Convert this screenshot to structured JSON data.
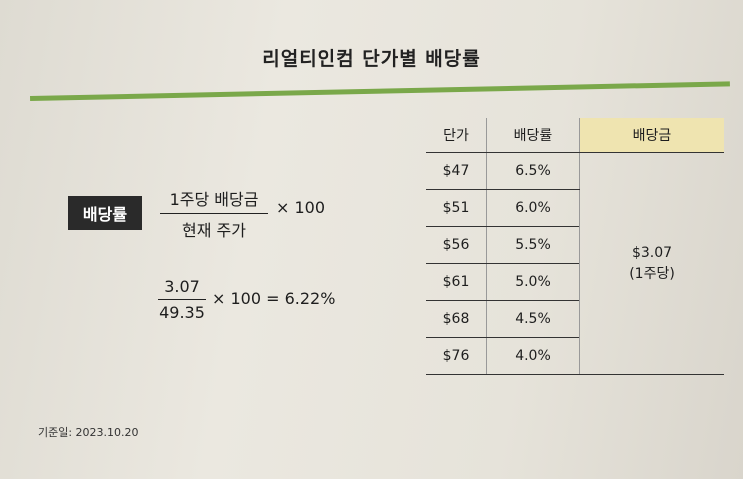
{
  "title": "리얼티인컴 단가별 배당률",
  "formula": {
    "label": "배당률",
    "numerator": "1주당 배당금",
    "denominator": "현재 주가",
    "multiplier": "× 100",
    "example_numerator": "3.07",
    "example_denominator": "49.35",
    "example_result": "× 100 = 6.22%"
  },
  "table": {
    "headers": [
      "단가",
      "배당률",
      "배당금"
    ],
    "rows": [
      {
        "price": "$47",
        "yield": "6.5%"
      },
      {
        "price": "$51",
        "yield": "6.0%"
      },
      {
        "price": "$56",
        "yield": "5.5%"
      },
      {
        "price": "$61",
        "yield": "5.0%"
      },
      {
        "price": "$68",
        "yield": "4.5%"
      },
      {
        "price": "$76",
        "yield": "4.0%"
      }
    ],
    "dividend_value": "$3.07",
    "dividend_unit": "(1주당)"
  },
  "note": "기준일: 2023.10.20",
  "colors": {
    "accent_line": "#7aa84a",
    "header_highlight": "#efe4b0",
    "label_box": "#2a2a2a"
  }
}
